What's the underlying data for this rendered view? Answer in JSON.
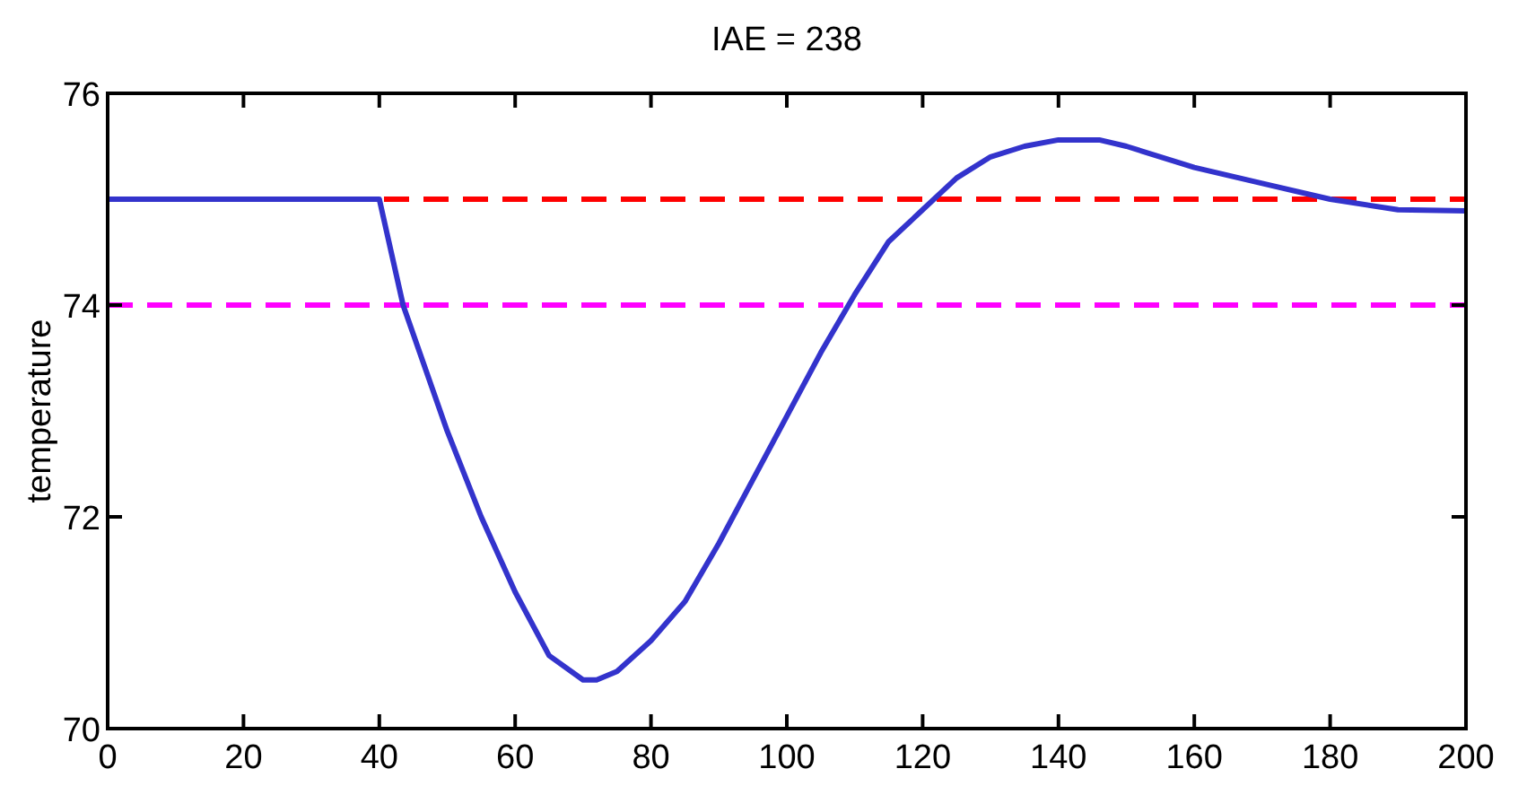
{
  "chart_data": {
    "type": "line",
    "title": "IAE = 238",
    "ylabel": "temperature",
    "x": [
      0,
      40,
      43.5,
      50,
      55,
      60,
      65,
      70,
      72,
      75,
      80,
      85,
      90,
      95,
      100,
      105,
      110,
      115,
      120,
      125,
      130,
      135,
      140,
      146,
      150,
      160,
      170,
      180,
      190,
      200
    ],
    "series": [
      {
        "color": "#3333cc",
        "values": [
          75,
          75,
          74,
          72.81,
          72.0,
          71.29,
          70.69,
          70.46,
          70.46,
          70.54,
          70.83,
          71.2,
          71.75,
          72.35,
          72.95,
          73.55,
          74.1,
          74.6,
          74.9,
          75.2,
          75.4,
          75.5,
          75.56,
          75.56,
          75.5,
          75.3,
          75.15,
          75.0,
          74.9,
          74.89
        ]
      }
    ],
    "xlim": [
      0,
      200
    ],
    "xticks": [
      0,
      20,
      40,
      60,
      80,
      100,
      120,
      140,
      160,
      180,
      200
    ],
    "ylim": [
      70,
      76
    ],
    "yticks": [
      70,
      72,
      74,
      76
    ],
    "ref_lines": [
      {
        "axis": "y",
        "value": 75,
        "color": "#ff0000",
        "line_style": "dashed"
      },
      {
        "axis": "y",
        "value": 74,
        "color": "#ff00ff",
        "line_style": "dashed"
      }
    ],
    "grid": false,
    "marker": "none",
    "line_style": "solid"
  }
}
